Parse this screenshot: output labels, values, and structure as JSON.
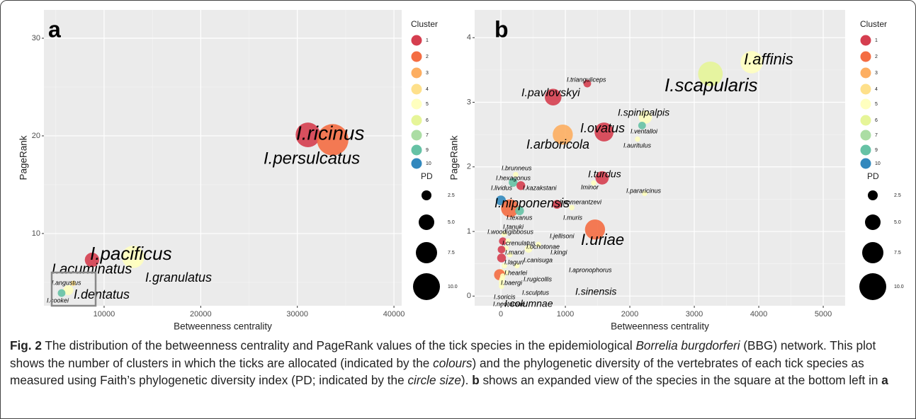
{
  "chart_data": [
    {
      "type": "scatter",
      "panel": "a",
      "x_label": "Betweenness centrality",
      "y_label": "PageRank",
      "xlim": [
        3770,
        40800
      ],
      "ylim": [
        2.6,
        32.9
      ],
      "xticks": [
        10000,
        20000,
        30000,
        40000
      ],
      "yticks": [
        10,
        20,
        30
      ],
      "grid": true,
      "legend_title": "Cluster",
      "clusters": [
        {
          "name": "1",
          "color": "#d53e4f"
        },
        {
          "name": "2",
          "color": "#f46d43"
        },
        {
          "name": "3",
          "color": "#fdae61"
        },
        {
          "name": "4",
          "color": "#fee08b"
        },
        {
          "name": "5",
          "color": "#ffffbf"
        },
        {
          "name": "6",
          "color": "#e6f598"
        },
        {
          "name": "7",
          "color": "#abdda4"
        },
        {
          "name": "9",
          "color": "#66c2a5"
        },
        {
          "name": "10",
          "color": "#3288bd"
        }
      ],
      "size_title": "PD",
      "size_legend": [
        2.5,
        {
          "value": 5,
          "label": "5.0"
        },
        7.5,
        {
          "value": 10,
          "label": "10.0"
        }
      ],
      "labels": [
        "I.ricinus",
        "I.persulcatus",
        "I.pacificus",
        "I.acuminatus",
        "I.granulatus",
        "I.angustus",
        "I.dentatus",
        "I.cookei"
      ],
      "x": [
        31100,
        33660,
        13000,
        8750,
        13500,
        6800,
        6300,
        5600
      ],
      "y": [
        20.1,
        19.6,
        7.6,
        7.3,
        7.0,
        4.9,
        4.2,
        3.9
      ],
      "cluster": [
        "1",
        "2",
        "5",
        "1",
        "5",
        "4",
        "5",
        "9"
      ],
      "pd": [
        9,
        12,
        8,
        4.5,
        0.5,
        0.5,
        2.5,
        1.5
      ]
    },
    {
      "type": "scatter",
      "panel": "b",
      "x_label": "Betweenness centrality",
      "y_label": "PageRank",
      "xlim": [
        -407,
        5340
      ],
      "ylim": [
        -0.15,
        4.43
      ],
      "xticks": [
        0,
        1000,
        2000,
        3000,
        4000,
        5000
      ],
      "yticks": [
        0,
        1,
        2,
        3,
        4
      ],
      "grid": true,
      "legend_title": "Cluster",
      "clusters": [
        {
          "name": "1",
          "color": "#d53e4f"
        },
        {
          "name": "2",
          "color": "#f46d43"
        },
        {
          "name": "3",
          "color": "#fdae61"
        },
        {
          "name": "4",
          "color": "#fee08b"
        },
        {
          "name": "5",
          "color": "#ffffbf"
        },
        {
          "name": "6",
          "color": "#e6f598"
        },
        {
          "name": "7",
          "color": "#abdda4"
        },
        {
          "name": "9",
          "color": "#66c2a5"
        },
        {
          "name": "10",
          "color": "#3288bd"
        }
      ],
      "size_title": "PD",
      "size_legend": [
        2.5,
        {
          "value": 5,
          "label": "5.0"
        },
        7.5,
        {
          "value": 10,
          "label": "10.0"
        }
      ],
      "labels": [
        "I.affinis",
        "I.scapularis",
        "I.trianguliceps",
        "I.pavlovskyi",
        "I.spinipalpis",
        "I.ventalloi",
        "I.auritulus",
        "I.ovatus",
        "I.arboricola",
        "I.turdus",
        "Iminor",
        "I.pararicinus",
        "I.brunneus",
        "I.hexagonus",
        "I.kazakstani",
        "I.lividus",
        "I.nipponensis",
        "I.pomerantzevi",
        "I.texanus",
        "I.muris",
        "I.uriae",
        "I.tanuki",
        "I.woodi",
        "I.gibbosus",
        "I.jellisoni",
        "I.crenulatus",
        "I.marxi",
        "I.kingi",
        "I.ochotonae",
        "I.laguri",
        "I.canisuga",
        "I.apronophorus",
        "I.hearlei",
        "I.rugicollis",
        "I.baergi",
        "I.sinensis",
        "I.sculptus",
        "I.soricis",
        "I.neotomae",
        "I.columnae"
      ],
      "x": [
        3890,
        3250,
        1340,
        810,
        2240,
        2190,
        2120,
        1600,
        960,
        1570,
        1440,
        2230,
        230,
        190,
        310,
        0,
        140,
        870,
        290,
        1100,
        1460,
        50,
        30,
        110,
        580,
        80,
        10,
        430,
        140,
        10,
        55,
        250,
        10,
        80,
        -20,
        30,
        20,
        10,
        10,
        10
      ],
      "y": [
        3.62,
        3.44,
        3.29,
        3.08,
        2.77,
        2.64,
        2.43,
        2.54,
        2.5,
        1.83,
        1.75,
        1.59,
        1.88,
        1.76,
        1.71,
        1.48,
        1.36,
        1.42,
        1.32,
        1.37,
        1.03,
        0.96,
        0.85,
        0.85,
        0.8,
        0.74,
        0.72,
        0.73,
        0.64,
        0.59,
        0.47,
        0.47,
        0.38,
        0.36,
        0.33,
        0.31,
        0.27,
        0.24,
        0.2,
        0.15
      ],
      "cluster": [
        "5",
        "6",
        "1",
        "1",
        "5",
        "9",
        "5",
        "1",
        "3",
        "1",
        "5",
        "5",
        "5",
        "9",
        "1",
        "10",
        "2",
        "1",
        "9",
        "5",
        "2",
        "5",
        "1",
        "5",
        "5",
        "5",
        "1",
        "5",
        "5",
        "1",
        "5",
        "5",
        "5",
        "5",
        "2",
        "5",
        "5",
        "5",
        "5",
        "5"
      ],
      "pd": [
        8,
        9,
        1.5,
        5.5,
        4,
        1.5,
        0.5,
        6.5,
        7,
        4,
        0.5,
        0.5,
        0.5,
        2,
        2,
        2.5,
        6,
        2,
        2,
        0.5,
        7,
        0.5,
        1.5,
        0.5,
        0.5,
        0.5,
        1.5,
        1.5,
        0.5,
        2,
        0.5,
        0.5,
        0.5,
        0.5,
        3,
        0.5,
        0.5,
        0.5,
        0.5,
        0.5
      ]
    }
  ],
  "caption": [
    "Fig. 2",
    " The distribution of the betweenness centrality and PageRank values of the tick species in the epidemiological ",
    "Borrelia burgdorferi",
    " (BBG) network. This plot shows the number of clusters in which the ticks are allocated (indicated by the ",
    "colours",
    ") and the phylogenetic diversity of the vertebrates of each tick species as measured using Faith’s phylogenetic diversity index (PD; indicated by the ",
    "circle size",
    "). ",
    "b",
    " shows an expanded view of the species in the square at the bottom left in ",
    "a"
  ]
}
